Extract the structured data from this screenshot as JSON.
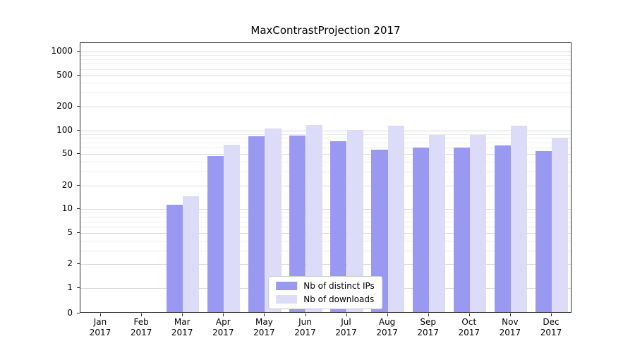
{
  "chart_data": {
    "type": "bar",
    "title": "MaxContrastProjection 2017",
    "y_scale": "symlog",
    "ylim": [
      0,
      1000
    ],
    "y_ticks": [
      0,
      1,
      2,
      5,
      10,
      20,
      50,
      100,
      200,
      500,
      1000
    ],
    "grid": true,
    "legend_position": "lower center",
    "categories": [
      {
        "month": "Jan",
        "year": "2017"
      },
      {
        "month": "Feb",
        "year": "2017"
      },
      {
        "month": "Mar",
        "year": "2017"
      },
      {
        "month": "Apr",
        "year": "2017"
      },
      {
        "month": "May",
        "year": "2017"
      },
      {
        "month": "Jun",
        "year": "2017"
      },
      {
        "month": "Jul",
        "year": "2017"
      },
      {
        "month": "Aug",
        "year": "2017"
      },
      {
        "month": "Sep",
        "year": "2017"
      },
      {
        "month": "Oct",
        "year": "2017"
      },
      {
        "month": "Nov",
        "year": "2017"
      },
      {
        "month": "Dec",
        "year": "2017"
      }
    ],
    "series": [
      {
        "name": "Nb of distinct IPs",
        "color": "#9a99f1",
        "values": [
          0,
          0,
          11,
          45,
          80,
          82,
          70,
          55,
          58,
          58,
          62,
          52
        ]
      },
      {
        "name": "Nb of downloads",
        "color": "#dcdbf8",
        "values": [
          0,
          0,
          14,
          63,
          102,
          112,
          97,
          110,
          85,
          85,
          110,
          77
        ]
      }
    ]
  }
}
